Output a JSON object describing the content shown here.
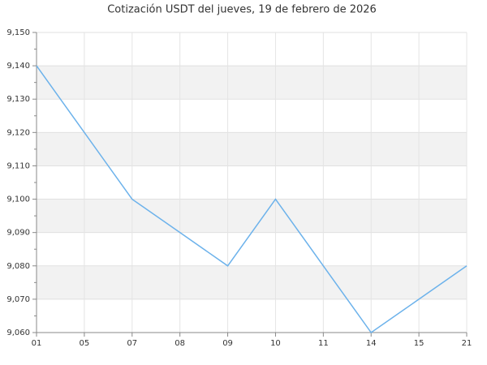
{
  "chart_data": {
    "type": "line",
    "title": "Cotización USDT del jueves, 19 de febrero de 2026",
    "categories": [
      "01",
      "05",
      "07",
      "08",
      "09",
      "10",
      "11",
      "14",
      "15",
      "21"
    ],
    "series": [
      {
        "name": "USDT",
        "color": "#6cb2eb",
        "values": [
          9140,
          9120,
          9100,
          9090,
          9080,
          9100,
          9080,
          9060,
          9070,
          9080
        ]
      }
    ],
    "ylim": [
      9060,
      9150
    ],
    "yticks": [
      {
        "value": 9060,
        "label": "9,060"
      },
      {
        "value": 9070,
        "label": "9,070"
      },
      {
        "value": 9080,
        "label": "9,080"
      },
      {
        "value": 9090,
        "label": "9,090"
      },
      {
        "value": 9100,
        "label": "9,100"
      },
      {
        "value": 9110,
        "label": "9,110"
      },
      {
        "value": 9120,
        "label": "9,120"
      },
      {
        "value": 9130,
        "label": "9,130"
      },
      {
        "value": 9140,
        "label": "9,140"
      },
      {
        "value": 9150,
        "label": "9,150"
      }
    ],
    "grid": true,
    "bands": true
  }
}
